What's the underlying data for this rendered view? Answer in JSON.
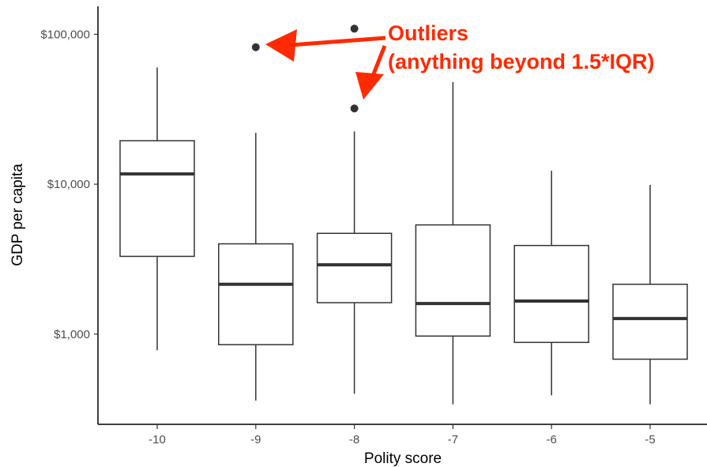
{
  "chart_data": {
    "type": "box",
    "xlabel": "Polity score",
    "ylabel": "GDP per capita",
    "y_scale": "log10",
    "y_range": [
      250,
      150000
    ],
    "y_ticks": [
      {
        "value": 1000,
        "label": "$1,000"
      },
      {
        "value": 10000,
        "label": "$10,000"
      },
      {
        "value": 100000,
        "label": "$100,000"
      }
    ],
    "categories": [
      "-10",
      "-9",
      "-8",
      "-7",
      "-6",
      "-5"
    ],
    "boxes": [
      {
        "category": "-10",
        "whisker_low": 780,
        "q1": 3300,
        "median": 11700,
        "q3": 19500,
        "whisker_high": 60000,
        "outliers": []
      },
      {
        "category": "-9",
        "whisker_low": 360,
        "q1": 850,
        "median": 2150,
        "q3": 4000,
        "whisker_high": 22000,
        "outliers": [
          82000
        ]
      },
      {
        "category": "-8",
        "whisker_low": 400,
        "q1": 1620,
        "median": 2900,
        "q3": 4700,
        "whisker_high": 22500,
        "outliers": [
          109000,
          32000
        ]
      },
      {
        "category": "-7",
        "whisker_low": 340,
        "q1": 970,
        "median": 1600,
        "q3": 5350,
        "whisker_high": 48000,
        "outliers": []
      },
      {
        "category": "-6",
        "whisker_low": 390,
        "q1": 880,
        "median": 1660,
        "q3": 3900,
        "whisker_high": 12300,
        "outliers": []
      },
      {
        "category": "-5",
        "whisker_low": 340,
        "q1": 680,
        "median": 1270,
        "q3": 2150,
        "whisker_high": 9900,
        "outliers": []
      }
    ],
    "grid": false,
    "annotation": {
      "line1": "Outliers",
      "line2": "(anything beyond 1.5*IQR)",
      "color": "#ff2a00"
    },
    "box_color": "#333333"
  }
}
